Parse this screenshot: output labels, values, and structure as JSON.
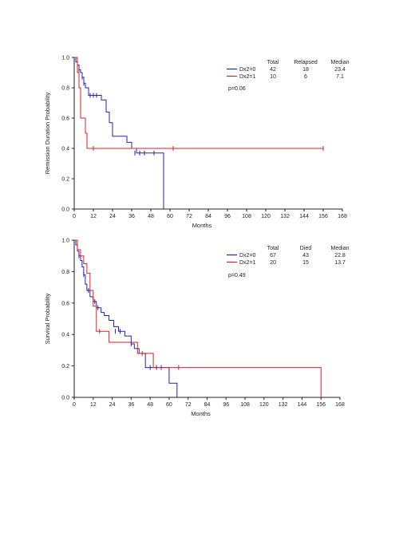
{
  "chart_data": [
    {
      "type": "line",
      "step": true,
      "ylabel": "Remission Duration Probability",
      "xlabel": "Months",
      "xlim": [
        0,
        168
      ],
      "ylim": [
        0,
        1.0
      ],
      "xticks": [
        "0",
        "12",
        "24",
        "36",
        "48",
        "60",
        "72",
        "84",
        "96",
        "108",
        "120",
        "132",
        "144",
        "156",
        "168"
      ],
      "yticks": [
        "0.0",
        "0.2",
        "0.4",
        "0.6",
        "0.8",
        "1.0"
      ],
      "legend": {
        "columns": [
          "Total",
          "Relapsed",
          "Median"
        ],
        "position": "top-right",
        "rows": [
          {
            "label": "Dx2=0",
            "color": "#2222bb",
            "values": [
              "42",
              "18",
              "23.4"
            ]
          },
          {
            "label": "Dx2=1",
            "color": "#dd2222",
            "values": [
              "10",
              "6",
              "7.1"
            ]
          }
        ]
      },
      "pvalue": "p=0.06",
      "series": [
        {
          "name": "Dx2=0",
          "color": "#2222bb",
          "points": [
            [
              0,
              1.0
            ],
            [
              1,
              0.97
            ],
            [
              2,
              0.95
            ],
            [
              3,
              0.92
            ],
            [
              4,
              0.9
            ],
            [
              5,
              0.87
            ],
            [
              6,
              0.83
            ],
            [
              7,
              0.8
            ],
            [
              9,
              0.75
            ],
            [
              17,
              0.72
            ],
            [
              20,
              0.64
            ],
            [
              22,
              0.57
            ],
            [
              24,
              0.48
            ],
            [
              33,
              0.44
            ],
            [
              36,
              0.4
            ],
            [
              39,
              0.37
            ],
            [
              56,
              0.37
            ],
            [
              56,
              0.0
            ]
          ],
          "censored": [
            [
              3,
              0.92
            ],
            [
              5,
              0.87
            ],
            [
              6,
              0.83
            ],
            [
              10,
              0.75
            ],
            [
              12,
              0.75
            ],
            [
              14,
              0.75
            ],
            [
              38,
              0.37
            ],
            [
              41,
              0.37
            ],
            [
              44,
              0.37
            ],
            [
              50,
              0.37
            ]
          ]
        },
        {
          "name": "Dx2=1",
          "color": "#dd2222",
          "points": [
            [
              0,
              1.0
            ],
            [
              2,
              0.9
            ],
            [
              3,
              0.8
            ],
            [
              4,
              0.6
            ],
            [
              7,
              0.5
            ],
            [
              8,
              0.4
            ],
            [
              156,
              0.4
            ]
          ],
          "censored": [
            [
              12,
              0.4
            ],
            [
              62,
              0.4
            ],
            [
              156,
              0.4
            ]
          ]
        }
      ]
    },
    {
      "type": "line",
      "step": true,
      "ylabel": "Survival Probability",
      "xlabel": "Months",
      "xlim": [
        0,
        168
      ],
      "ylim": [
        0,
        1.0
      ],
      "xticks": [
        "0",
        "12",
        "24",
        "36",
        "48",
        "60",
        "72",
        "84",
        "96",
        "108",
        "120",
        "132",
        "144",
        "156",
        "168"
      ],
      "yticks": [
        "0.0",
        "0.2",
        "0.4",
        "0.6",
        "0.8",
        "1.0"
      ],
      "legend": {
        "columns": [
          "Total",
          "Died",
          "Median"
        ],
        "position": "top-right",
        "rows": [
          {
            "label": "Dx2=0",
            "color": "#2222bb",
            "values": [
              "67",
              "43",
              "22.8"
            ]
          },
          {
            "label": "Dx2=1",
            "color": "#dd2222",
            "values": [
              "20",
              "15",
              "13.7"
            ]
          }
        ]
      },
      "pvalue": "p=0.49",
      "series": [
        {
          "name": "Dx2=0",
          "color": "#2222bb",
          "points": [
            [
              0,
              1.0
            ],
            [
              1,
              0.97
            ],
            [
              2,
              0.93
            ],
            [
              3,
              0.9
            ],
            [
              4,
              0.87
            ],
            [
              5,
              0.83
            ],
            [
              6,
              0.78
            ],
            [
              7,
              0.72
            ],
            [
              8,
              0.68
            ],
            [
              10,
              0.64
            ],
            [
              12,
              0.61
            ],
            [
              14,
              0.57
            ],
            [
              17,
              0.54
            ],
            [
              19,
              0.52
            ],
            [
              22,
              0.49
            ],
            [
              25,
              0.45
            ],
            [
              28,
              0.42
            ],
            [
              32,
              0.39
            ],
            [
              36,
              0.34
            ],
            [
              38,
              0.31
            ],
            [
              41,
              0.28
            ],
            [
              45,
              0.19
            ],
            [
              58,
              0.19
            ],
            [
              60,
              0.09
            ],
            [
              65,
              0.09
            ],
            [
              65,
              0.0
            ]
          ],
          "censored": [
            [
              3,
              0.9
            ],
            [
              6,
              0.78
            ],
            [
              9,
              0.68
            ],
            [
              13,
              0.61
            ],
            [
              15,
              0.57
            ],
            [
              26,
              0.42
            ],
            [
              29,
              0.42
            ],
            [
              36,
              0.34
            ],
            [
              48,
              0.19
            ],
            [
              52,
              0.19
            ],
            [
              55,
              0.19
            ]
          ]
        },
        {
          "name": "Dx2=1",
          "color": "#dd2222",
          "points": [
            [
              0,
              1.0
            ],
            [
              2,
              0.94
            ],
            [
              4,
              0.9
            ],
            [
              6,
              0.85
            ],
            [
              8,
              0.79
            ],
            [
              10,
              0.68
            ],
            [
              12,
              0.58
            ],
            [
              14,
              0.42
            ],
            [
              20,
              0.42
            ],
            [
              22,
              0.35
            ],
            [
              36,
              0.35
            ],
            [
              40,
              0.28
            ],
            [
              50,
              0.28
            ],
            [
              50,
              0.19
            ],
            [
              156,
              0.19
            ],
            [
              156,
              0.0
            ]
          ],
          "censored": [
            [
              16,
              0.42
            ],
            [
              43,
              0.28
            ],
            [
              66,
              0.19
            ]
          ]
        }
      ]
    }
  ]
}
